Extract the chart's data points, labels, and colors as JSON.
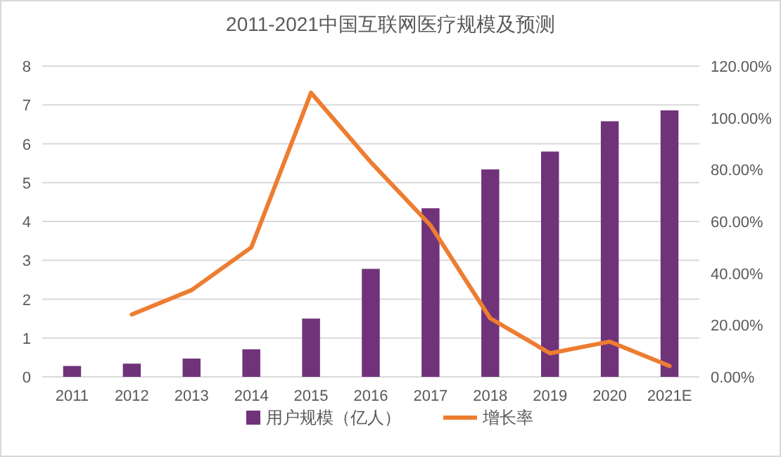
{
  "chart_data": {
    "type": "bar",
    "title": "2011-2021中国互联网医疗规模及预测",
    "categories": [
      "2011",
      "2012",
      "2013",
      "2014",
      "2015",
      "2016",
      "2017",
      "2018",
      "2019",
      "2020",
      "2021E"
    ],
    "series": [
      {
        "name": "用户规模（亿人）",
        "color": "#70337a",
        "values": [
          0.28,
          0.34,
          0.47,
          0.71,
          1.5,
          2.78,
          4.34,
          5.34,
          5.8,
          6.58,
          6.86
        ]
      },
      {
        "name": "增长率",
        "type": "line",
        "axis": "y2",
        "color": "#ed7d31",
        "values": [
          null,
          24.1,
          33.5,
          50.0,
          109.7,
          82.9,
          58.5,
          22.6,
          9.1,
          13.6,
          4.2
        ]
      }
    ],
    "ylim": [
      0,
      8
    ],
    "yticks": [
      0,
      1,
      2,
      3,
      4,
      5,
      6,
      7,
      8
    ],
    "y2lim": [
      0,
      120
    ],
    "y2ticks": [
      {
        "value": 0,
        "label": "0.00%"
      },
      {
        "value": 20,
        "label": "20.00%"
      },
      {
        "value": 40,
        "label": "40.00%"
      },
      {
        "value": 60,
        "label": "60.00%"
      },
      {
        "value": 80,
        "label": "80.00%"
      },
      {
        "value": 100,
        "label": "100.00%"
      },
      {
        "value": 120,
        "label": "120.00%"
      }
    ],
    "grid": "y",
    "legend": "bottom"
  }
}
